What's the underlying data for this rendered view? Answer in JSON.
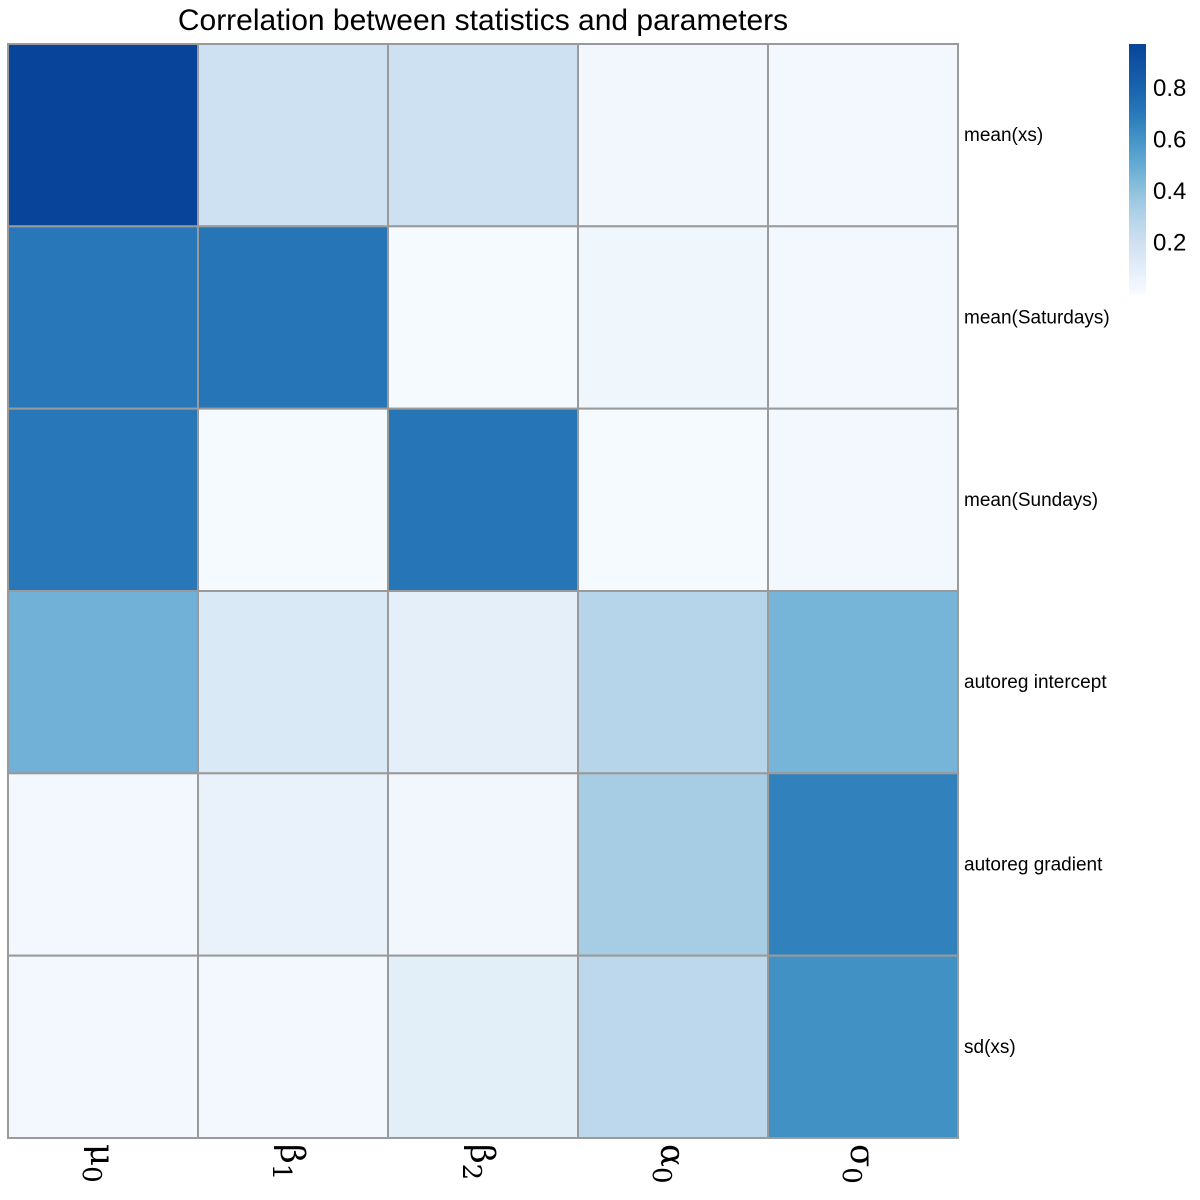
{
  "chart_data": {
    "type": "heatmap",
    "title": "Correlation between statistics and parameters",
    "rows": [
      "mean(xs)",
      "mean(Saturdays)",
      "mean(Sundays)",
      "autoreg intercept",
      "autoreg gradient",
      "sd(xs)"
    ],
    "columns": [
      {
        "base": "μ",
        "sub": "0"
      },
      {
        "base": "β",
        "sub": "1"
      },
      {
        "base": "β",
        "sub": "2"
      },
      {
        "base": "α",
        "sub": "0"
      },
      {
        "base": "σ",
        "sub": "0"
      }
    ],
    "values": [
      [
        0.97,
        0.2,
        0.2,
        0.03,
        0.02
      ],
      [
        0.7,
        0.71,
        0.01,
        0.04,
        0.02
      ],
      [
        0.7,
        0.01,
        0.71,
        0.01,
        0.02
      ],
      [
        0.47,
        0.14,
        0.09,
        0.29,
        0.46
      ],
      [
        0.02,
        0.07,
        0.03,
        0.34,
        0.67
      ],
      [
        0.02,
        0.02,
        0.1,
        0.27,
        0.61
      ]
    ],
    "legend": {
      "ticks": [
        0.2,
        0.4,
        0.6,
        0.8
      ],
      "tick_labels": [
        "0.2",
        "0.4",
        "0.6",
        "0.8"
      ],
      "range": [
        0.0,
        0.97
      ],
      "placement": "top-right"
    },
    "colors": {
      "low": "#f7fbff",
      "mid": "#6aaed6",
      "high": "#08449a",
      "grid": "#9a9a9a"
    },
    "grid": true
  }
}
